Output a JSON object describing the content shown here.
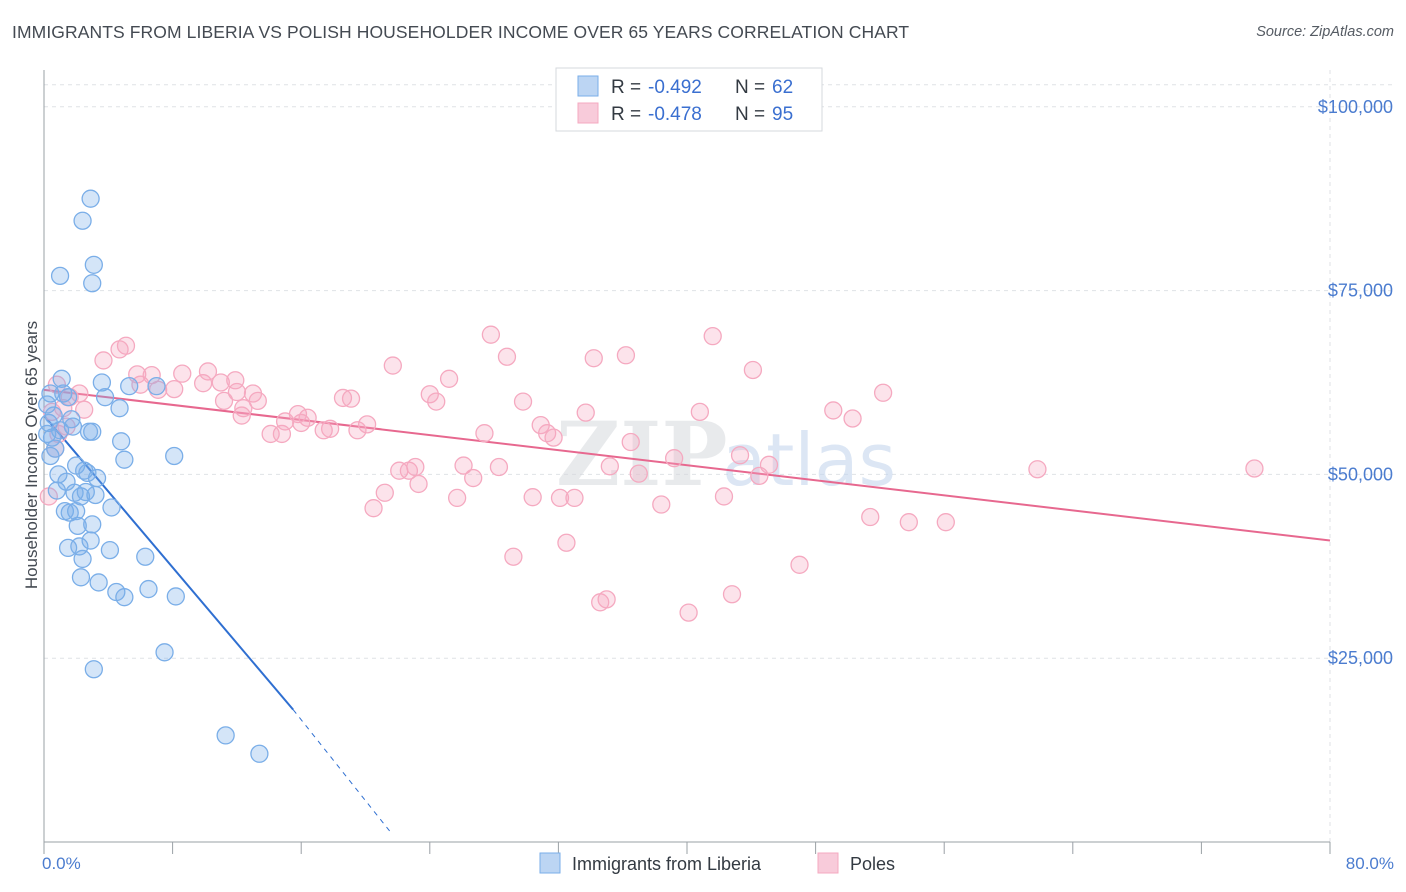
{
  "header": {
    "title": "IMMIGRANTS FROM LIBERIA VS POLISH HOUSEHOLDER INCOME OVER 65 YEARS CORRELATION CHART",
    "source": "Source: ZipAtlas.com"
  },
  "watermark": {
    "zip": "ZIP",
    "atlas": "atlas"
  },
  "legend": {
    "rows": [
      {
        "r_label": "R = ",
        "r_value": "-0.492",
        "n_label": "N = ",
        "n_value": "62",
        "color": "#a8c8f0"
      },
      {
        "r_label": "R = ",
        "r_value": "-0.478",
        "n_label": "N = ",
        "n_value": "95",
        "color": "#f6b8cc"
      }
    ]
  },
  "chart_data": {
    "type": "scatter",
    "xlabel": "",
    "ylabel": "Householder Income Over 65 years",
    "xlim": [
      0,
      80
    ],
    "ylim": [
      0,
      105000
    ],
    "x_tick_labels": {
      "left": "0.0%",
      "right": "80.0%"
    },
    "y_ticks": [
      {
        "value": 25000,
        "label": "$25,000"
      },
      {
        "value": 50000,
        "label": "$50,000"
      },
      {
        "value": 75000,
        "label": "$75,000"
      },
      {
        "value": 100000,
        "label": "$100,000"
      }
    ],
    "grid": true,
    "legend_position": "top-center",
    "series": [
      {
        "name": "Immigrants from Liberia",
        "color": "#7aaee8",
        "line_color": "#2f6fd1",
        "trend": {
          "x0": 0,
          "y0": 58000,
          "x1": 15.5,
          "y1": 18000,
          "dash_x1": 21.5,
          "dash_y1": 1500
        },
        "points": [
          [
            2.9,
            87500
          ],
          [
            2.4,
            84500
          ],
          [
            3.1,
            78500
          ],
          [
            1.0,
            77000
          ],
          [
            3.0,
            76000
          ],
          [
            1.1,
            63000
          ],
          [
            0.4,
            61000
          ],
          [
            1.2,
            61000
          ],
          [
            1.5,
            60500
          ],
          [
            3.6,
            62500
          ],
          [
            3.8,
            60500
          ],
          [
            7.0,
            62000
          ],
          [
            0.6,
            58000
          ],
          [
            0.3,
            57000
          ],
          [
            1.0,
            56000
          ],
          [
            1.8,
            56500
          ],
          [
            2.8,
            55800
          ],
          [
            3.0,
            55800
          ],
          [
            0.5,
            55000
          ],
          [
            4.7,
            59000
          ],
          [
            0.7,
            53500
          ],
          [
            4.8,
            54500
          ],
          [
            5.0,
            52000
          ],
          [
            8.1,
            52500
          ],
          [
            2.0,
            51200
          ],
          [
            2.5,
            50500
          ],
          [
            2.7,
            50200
          ],
          [
            0.9,
            50000
          ],
          [
            1.4,
            49000
          ],
          [
            1.9,
            47500
          ],
          [
            2.3,
            47000
          ],
          [
            3.2,
            47200
          ],
          [
            0.8,
            47800
          ],
          [
            2.0,
            45000
          ],
          [
            1.3,
            45000
          ],
          [
            4.2,
            45500
          ],
          [
            2.1,
            43000
          ],
          [
            3.0,
            43200
          ],
          [
            2.9,
            41000
          ],
          [
            1.5,
            40000
          ],
          [
            2.2,
            40200
          ],
          [
            4.1,
            39700
          ],
          [
            6.3,
            38800
          ],
          [
            2.4,
            38500
          ],
          [
            2.3,
            36000
          ],
          [
            3.4,
            35300
          ],
          [
            6.5,
            34400
          ],
          [
            4.5,
            34000
          ],
          [
            5.0,
            33300
          ],
          [
            8.2,
            33400
          ],
          [
            7.5,
            25800
          ],
          [
            3.1,
            23500
          ],
          [
            11.3,
            14500
          ],
          [
            13.4,
            12000
          ],
          [
            0.2,
            55500
          ],
          [
            1.7,
            57500
          ],
          [
            3.3,
            49500
          ],
          [
            0.4,
            52500
          ],
          [
            1.6,
            44800
          ],
          [
            2.6,
            47600
          ],
          [
            5.3,
            62000
          ],
          [
            0.2,
            59500
          ]
        ]
      },
      {
        "name": "Poles",
        "color": "#f5a9c0",
        "line_color": "#e7688f",
        "trend": {
          "x0": 0,
          "y0": 61500,
          "x1": 80,
          "y1": 41000
        },
        "points": [
          [
            5.1,
            67500
          ],
          [
            4.7,
            67000
          ],
          [
            3.7,
            65500
          ],
          [
            0.8,
            62200
          ],
          [
            2.2,
            61000
          ],
          [
            0.7,
            53500
          ],
          [
            0.3,
            47000
          ],
          [
            0.5,
            58500
          ],
          [
            1.2,
            59000
          ],
          [
            1.6,
            60500
          ],
          [
            5.8,
            63600
          ],
          [
            6.7,
            63500
          ],
          [
            7.1,
            61500
          ],
          [
            8.1,
            61600
          ],
          [
            8.6,
            63700
          ],
          [
            9.9,
            62400
          ],
          [
            10.2,
            64000
          ],
          [
            11.0,
            62500
          ],
          [
            11.9,
            62800
          ],
          [
            12.0,
            61200
          ],
          [
            11.2,
            60000
          ],
          [
            12.4,
            59000
          ],
          [
            12.3,
            58000
          ],
          [
            13.3,
            60000
          ],
          [
            13.0,
            61000
          ],
          [
            14.1,
            55500
          ],
          [
            14.8,
            55500
          ],
          [
            15.0,
            57200
          ],
          [
            15.8,
            58200
          ],
          [
            16.4,
            57700
          ],
          [
            16.0,
            57000
          ],
          [
            17.4,
            56000
          ],
          [
            17.8,
            56200
          ],
          [
            18.6,
            60400
          ],
          [
            19.1,
            60300
          ],
          [
            19.5,
            56000
          ],
          [
            20.1,
            56800
          ],
          [
            20.5,
            45400
          ],
          [
            21.2,
            47500
          ],
          [
            21.7,
            64800
          ],
          [
            22.1,
            50500
          ],
          [
            22.7,
            50500
          ],
          [
            23.1,
            51000
          ],
          [
            23.3,
            48700
          ],
          [
            24.0,
            60900
          ],
          [
            24.4,
            59900
          ],
          [
            25.2,
            63000
          ],
          [
            25.7,
            46800
          ],
          [
            26.1,
            51200
          ],
          [
            26.7,
            49500
          ],
          [
            27.4,
            55600
          ],
          [
            27.8,
            69000
          ],
          [
            28.3,
            51000
          ],
          [
            28.8,
            66000
          ],
          [
            29.2,
            38800
          ],
          [
            29.8,
            59900
          ],
          [
            30.4,
            46900
          ],
          [
            30.9,
            56700
          ],
          [
            31.3,
            55600
          ],
          [
            31.7,
            55000
          ],
          [
            32.1,
            46800
          ],
          [
            32.5,
            40700
          ],
          [
            33.0,
            46800
          ],
          [
            33.7,
            58400
          ],
          [
            34.2,
            65800
          ],
          [
            34.6,
            32600
          ],
          [
            35.0,
            33000
          ],
          [
            35.2,
            51100
          ],
          [
            36.2,
            66200
          ],
          [
            36.5,
            54400
          ],
          [
            37.0,
            50100
          ],
          [
            38.4,
            45900
          ],
          [
            39.2,
            52200
          ],
          [
            40.1,
            31200
          ],
          [
            40.8,
            58500
          ],
          [
            41.6,
            68800
          ],
          [
            42.3,
            47000
          ],
          [
            42.8,
            33700
          ],
          [
            43.3,
            52600
          ],
          [
            44.1,
            64200
          ],
          [
            44.5,
            49800
          ],
          [
            45.1,
            51300
          ],
          [
            47.0,
            37700
          ],
          [
            49.1,
            58700
          ],
          [
            50.3,
            57600
          ],
          [
            51.4,
            44200
          ],
          [
            52.2,
            61100
          ],
          [
            53.8,
            43500
          ],
          [
            56.1,
            43500
          ],
          [
            61.8,
            50700
          ],
          [
            75.3,
            50800
          ],
          [
            0.9,
            55500
          ],
          [
            1.4,
            56500
          ],
          [
            2.5,
            58800
          ],
          [
            6.0,
            62200
          ]
        ]
      }
    ]
  },
  "bottom_legend": {
    "items": [
      {
        "label": "Immigrants from Liberia",
        "color": "#a8c8f0"
      },
      {
        "label": "Poles",
        "color": "#f6b8cc"
      }
    ]
  }
}
